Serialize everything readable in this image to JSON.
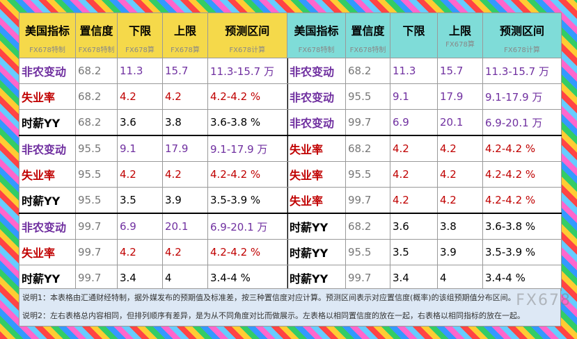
{
  "left": {
    "header": [
      {
        "title": "美国指标",
        "sub": "FX678特制"
      },
      {
        "title": "置信度",
        "sub": "FX678特制"
      },
      {
        "title": "下限",
        "sub": "FX678算"
      },
      {
        "title": "上限",
        "sub": "FX678算"
      },
      {
        "title": "预测区间",
        "sub": "FX678计算"
      }
    ],
    "rows": [
      {
        "color": "#7030a0",
        "cells": [
          "非农变动",
          "68.2",
          "11.3",
          "15.7",
          "11.3-15.7 万"
        ]
      },
      {
        "color": "#c00000",
        "cells": [
          "失业率",
          "68.2",
          "4.2",
          "4.2",
          "4.2-4.2 %"
        ]
      },
      {
        "color": "#000000",
        "cells": [
          "时薪YY",
          "68.2",
          "3.6",
          "3.8",
          "3.6-3.8 %"
        ]
      },
      {
        "color": "#7030a0",
        "cells": [
          "非农变动",
          "95.5",
          "9.1",
          "17.9",
          "9.1-17.9 万"
        ]
      },
      {
        "color": "#c00000",
        "cells": [
          "失业率",
          "95.5",
          "4.2",
          "4.2",
          "4.2-4.2 %"
        ]
      },
      {
        "color": "#000000",
        "cells": [
          "时薪YY",
          "95.5",
          "3.5",
          "3.9",
          "3.5-3.9 %"
        ]
      },
      {
        "color": "#7030a0",
        "cells": [
          "非农变动",
          "99.7",
          "6.9",
          "20.1",
          "6.9-20.1 万"
        ]
      },
      {
        "color": "#c00000",
        "cells": [
          "失业率",
          "99.7",
          "4.2",
          "4.2",
          "4.2-4.2 %"
        ]
      },
      {
        "color": "#000000",
        "cells": [
          "时薪YY",
          "99.7",
          "3.4",
          "4",
          "3.4-4 %"
        ]
      }
    ]
  },
  "right": {
    "header": [
      {
        "title": "美国指标",
        "sub": "FX678特制"
      },
      {
        "title": "置信度",
        "sub": "FX678特制"
      },
      {
        "title": "下限"
      },
      {
        "title": "上限",
        "sub": "FX678算"
      },
      {
        "title": "预测区间",
        "sub": "FX678计算"
      }
    ],
    "rows": [
      {
        "color": "#7030a0",
        "cells": [
          "非农变动",
          "68.2",
          "11.3",
          "15.7",
          "11.3-15.7 万"
        ]
      },
      {
        "color": "#7030a0",
        "cells": [
          "非农变动",
          "95.5",
          "9.1",
          "17.9",
          "9.1-17.9 万"
        ]
      },
      {
        "color": "#7030a0",
        "cells": [
          "非农变动",
          "99.7",
          "6.9",
          "20.1",
          "6.9-20.1 万"
        ]
      },
      {
        "color": "#c00000",
        "cells": [
          "失业率",
          "68.2",
          "4.2",
          "4.2",
          "4.2-4.2 %"
        ]
      },
      {
        "color": "#c00000",
        "cells": [
          "失业率",
          "95.5",
          "4.2",
          "4.2",
          "4.2-4.2 %"
        ]
      },
      {
        "color": "#c00000",
        "cells": [
          "失业率",
          "99.7",
          "4.2",
          "4.2",
          "4.2-4.2 %"
        ]
      },
      {
        "color": "#000000",
        "cells": [
          "时薪YY",
          "68.2",
          "3.6",
          "3.8",
          "3.6-3.8 %"
        ]
      },
      {
        "color": "#000000",
        "cells": [
          "时薪YY",
          "95.5",
          "3.5",
          "3.9",
          "3.5-3.9 %"
        ]
      },
      {
        "color": "#000000",
        "cells": [
          "时薪YY",
          "99.7",
          "3.4",
          "4",
          "3.4-4 %"
        ]
      }
    ]
  },
  "notes": [
    "说明1：本表格由汇通财经特制，据外媒发布的预期值及标准差，按三种置信度对应计算。预测区间表示对应置信度(概率)的该组预期值分布区间。",
    "说明2：左右表格总内容相同，但排列顺序有差异，是为从不同角度对比而做展示。左表格以相同置信度的放在一起，右表格以相同指标的放在一起。"
  ],
  "watermark": "FX678"
}
